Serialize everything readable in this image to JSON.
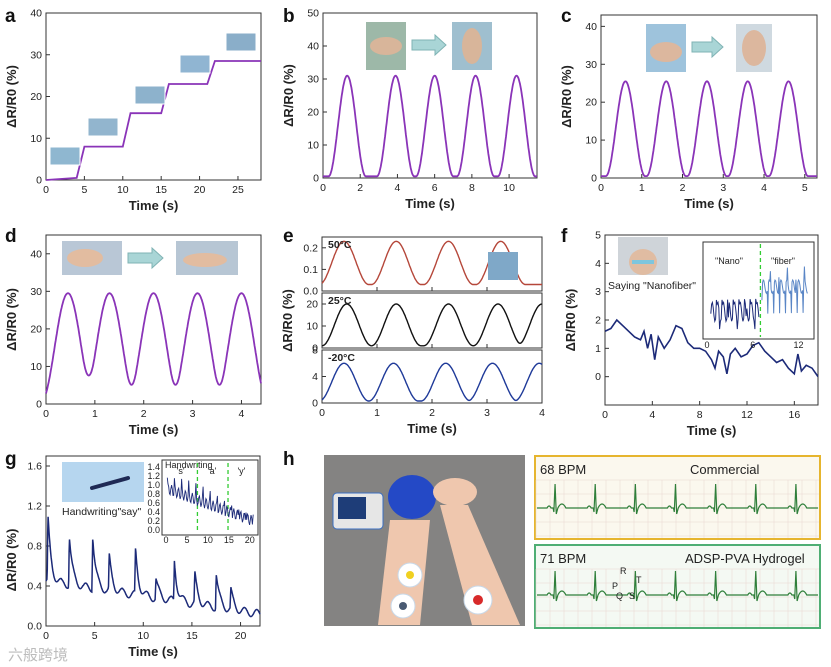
{
  "figure": {
    "watermark": "六般跨境",
    "h_commercial_bpm": "68 BPM",
    "h_commercial_label": "Commercial",
    "h_hydrogel_bpm": "71 BPM",
    "h_hydrogel_label": "ADSP-PVA Hydrogel",
    "h_wave_labels": [
      "P",
      "R",
      "Q",
      "S",
      "T"
    ]
  },
  "colors": {
    "purple": "#8a34b8",
    "navy": "#1c2a78",
    "red": "#b5473a",
    "black": "#111111",
    "blue": "#1f3a99",
    "ecg": "#2f7f3a",
    "green_dash": "#33cc33",
    "gold_frame": "#e6b52e",
    "green_frame": "#4fae74",
    "inset_blue": "#5a86c6"
  },
  "chart_data": [
    {
      "id": "a",
      "type": "line",
      "panel_label": "a",
      "xlabel": "Time (s)",
      "ylabel": "ΔR/R0 (%)",
      "xlim": [
        0,
        28
      ],
      "ylim": [
        0,
        40
      ],
      "xticks": [
        0,
        5,
        10,
        15,
        20,
        25
      ],
      "yticks": [
        0,
        10,
        20,
        30,
        40
      ],
      "series": [
        {
          "name": "bending steps",
          "x": [
            0,
            4,
            5,
            10,
            11,
            15,
            16,
            21,
            22,
            28
          ],
          "y": [
            0,
            0.5,
            8,
            8,
            16,
            16,
            23,
            23,
            28.5,
            28.5
          ]
        }
      ]
    },
    {
      "id": "b",
      "type": "line",
      "panel_label": "b",
      "xlabel": "Time (s)",
      "ylabel": "ΔR/R0 (%)",
      "xlim": [
        0,
        11.5
      ],
      "ylim": [
        0,
        50
      ],
      "xticks": [
        0,
        2,
        4,
        6,
        8,
        10
      ],
      "yticks": [
        0,
        10,
        20,
        30,
        40,
        50
      ],
      "series": [
        {
          "name": "knee",
          "peaks": [
            1.3,
            3.9,
            6.0,
            8.2,
            10.4
          ],
          "peak_value": 31,
          "base": 0.5,
          "width": 1.0
        }
      ]
    },
    {
      "id": "c",
      "type": "line",
      "panel_label": "c",
      "xlabel": "Time (s)",
      "ylabel": "ΔR/R0 (%)",
      "xlim": [
        0,
        5.3
      ],
      "ylim": [
        0,
        43
      ],
      "xticks": [
        0,
        1,
        2,
        3,
        4,
        5
      ],
      "yticks": [
        0,
        10,
        20,
        30,
        40
      ],
      "series": [
        {
          "name": "shoulder",
          "peaks": [
            0.6,
            1.6,
            2.6,
            3.6,
            4.6
          ],
          "peak_value": 25.5,
          "base": 0.5,
          "width": 0.48
        }
      ]
    },
    {
      "id": "d",
      "type": "line",
      "panel_label": "d",
      "xlabel": "Time (s)",
      "ylabel": "ΔR/R0 (%)",
      "xlim": [
        0,
        4.4
      ],
      "ylim": [
        0,
        45
      ],
      "xticks": [
        0,
        1,
        2,
        3,
        4
      ],
      "yticks": [
        0,
        10,
        20,
        30,
        40
      ],
      "series": [
        {
          "name": "wrist",
          "peaks": [
            0.45,
            1.3,
            2.2,
            3.1,
            4.0
          ],
          "peak_value": 29.5,
          "base": 0.5,
          "width": 0.55
        }
      ]
    },
    {
      "id": "e",
      "type": "line",
      "panel_label": "e",
      "xlabel": "Time (s)",
      "ylabel": "ΔR/R0 (%)",
      "xlim": [
        0,
        4
      ],
      "xticks": [
        0,
        1,
        2,
        3,
        4
      ],
      "subplots": [
        {
          "label": "50°C",
          "ylim": [
            0,
            0.25
          ],
          "yticks": [
            0.0,
            0.1,
            0.2
          ],
          "peaks": [
            0.4,
            1.35,
            2.3,
            3.25
          ],
          "peak_value": 0.23,
          "base": 0.03,
          "width": 0.55
        },
        {
          "label": "25°C",
          "ylim": [
            0,
            25
          ],
          "yticks": [
            0,
            10,
            20
          ],
          "peaks": [
            0.45,
            1.35,
            2.3,
            3.2,
            4.0
          ],
          "peak_value": 20,
          "base": 1,
          "width": 0.55
        },
        {
          "label": "-20°C",
          "ylim": [
            0,
            8
          ],
          "yticks": [
            0,
            4,
            8
          ],
          "peaks": [
            0.4,
            1.3,
            2.25,
            3.1,
            3.95
          ],
          "peak_value": 6,
          "base": 0.3,
          "width": 0.55
        }
      ]
    },
    {
      "id": "f",
      "type": "line",
      "panel_label": "f",
      "xlabel": "Time (s)",
      "ylabel": "ΔR/R0 (%)",
      "xlim": [
        0,
        18
      ],
      "ylim": [
        -1,
        5
      ],
      "xticks": [
        0,
        4,
        8,
        12,
        16
      ],
      "yticks": [
        0,
        1,
        2,
        3,
        4,
        5
      ],
      "annotation": "Saying \"Nanofiber\"",
      "series": [
        {
          "name": "throat",
          "x": [
            0,
            0.5,
            1,
            1.5,
            2,
            2.5,
            3,
            3.3,
            3.6,
            3.9,
            4.2,
            4.5,
            5,
            5.5,
            6,
            6.5,
            7,
            7.5,
            8,
            8.5,
            9,
            9.3,
            9.6,
            10,
            10.3,
            10.6,
            11,
            11.5,
            12,
            12.5,
            13,
            13.5,
            14,
            14.5,
            15,
            15.5,
            16,
            16.3,
            16.6,
            17,
            17.5,
            18
          ],
          "y": [
            1.6,
            1.7,
            2.0,
            1.8,
            1.6,
            1.4,
            1.3,
            1.6,
            1.0,
            1.5,
            0.6,
            1.4,
            1.0,
            1.3,
            1.8,
            1.7,
            1.2,
            1.0,
            1.0,
            0.9,
            0.6,
            0.3,
            0.9,
            0.7,
            0.1,
            0.8,
            1.0,
            0.7,
            0.8,
            1.1,
            1.2,
            0.9,
            0.7,
            0.5,
            0.6,
            0.3,
            0.1,
            0.8,
            0.2,
            0.4,
            0.3,
            0.0
          ]
        }
      ],
      "inset": {
        "labels": [
          "\"Nano\"",
          "\"fiber\""
        ],
        "xticks": [
          0,
          6,
          12
        ],
        "divider_x": 7
      }
    },
    {
      "id": "g",
      "type": "line",
      "panel_label": "g",
      "xlabel": "Time (s)",
      "ylabel": "ΔR/R0 (%)",
      "xlim": [
        0,
        22
      ],
      "ylim": [
        0,
        1.7
      ],
      "xticks": [
        0,
        5,
        10,
        15,
        20
      ],
      "yticks": [
        0.0,
        0.4,
        0.8,
        1.2,
        1.6
      ],
      "annotation": "Handwriting\"say\"",
      "spikes": [
        0.2,
        2.4,
        4.8,
        6.5,
        9.2,
        11.3,
        13.2,
        15.3,
        17.5,
        19.0,
        20.5
      ],
      "spike_heights": [
        1.05,
        0.9,
        0.95,
        0.75,
        0.85,
        0.6,
        0.8,
        0.7,
        0.75,
        0.6,
        0.4
      ],
      "inset": {
        "title": "Handwriting",
        "letters": [
          "'s'",
          "'a'",
          "'y'"
        ],
        "yticks": [
          0.0,
          0.2,
          0.4,
          0.6,
          0.8,
          1.0,
          1.2,
          1.4
        ],
        "xticks": [
          0,
          5,
          10,
          15,
          20
        ]
      }
    }
  ]
}
